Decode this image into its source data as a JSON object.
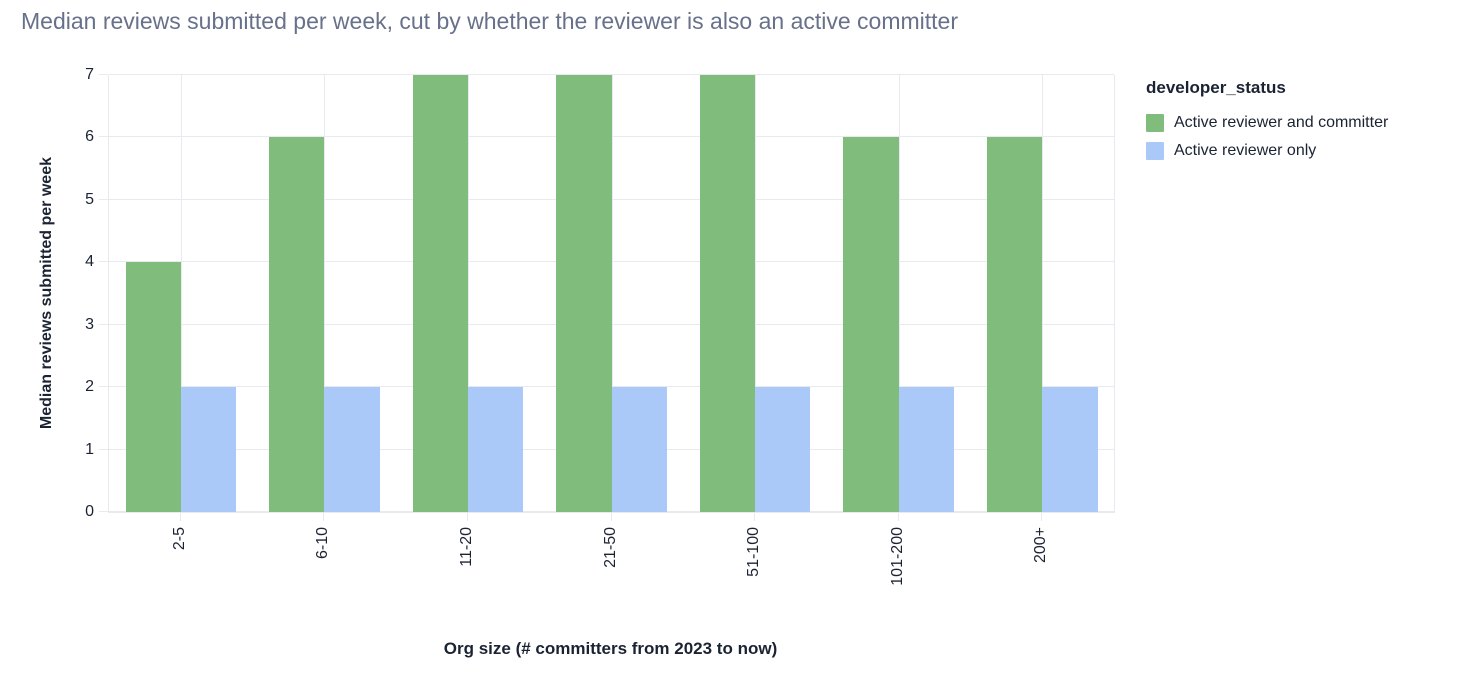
{
  "chart_data": {
    "type": "bar",
    "title": "Median reviews submitted per week, cut by whether the reviewer is also an active committer",
    "xlabel": "Org size (# committers from 2023 to now)",
    "ylabel": "Median reviews submitted per week",
    "legend_title": "developer_status",
    "legend_position": "right",
    "grid": true,
    "categories": [
      "2-5",
      "6-10",
      "11-20",
      "21-50",
      "51-100",
      "101-200",
      "200+"
    ],
    "series": [
      {
        "name": "Active reviewer and committer",
        "color": "#80bd7d",
        "values": [
          4,
          6,
          7,
          7,
          7,
          6,
          6
        ]
      },
      {
        "name": "Active reviewer only",
        "color": "#aac9f8",
        "values": [
          2,
          2,
          2,
          2,
          2,
          2,
          2
        ]
      }
    ],
    "ylim": [
      0,
      7
    ],
    "yticks": [
      0,
      1,
      2,
      3,
      4,
      5,
      6,
      7
    ]
  },
  "colors": {
    "background": "#ffffff",
    "grid": "#e8eaf0",
    "axis_text": "#1b2333",
    "title_text": "#68718a"
  }
}
